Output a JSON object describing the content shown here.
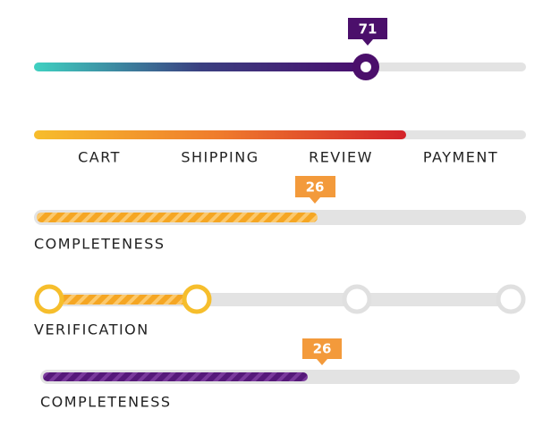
{
  "slider": {
    "value_label": "71"
  },
  "checkout_steps": {
    "steps": [
      "CART",
      "SHIPPING",
      "REVIEW",
      "PAYMENT"
    ]
  },
  "progress_1": {
    "value_label": "26",
    "label": "COMPLETENESS"
  },
  "verification": {
    "label": "VERIFICATION"
  },
  "progress_2": {
    "value_label": "26",
    "label": "COMPLETENESS"
  }
}
